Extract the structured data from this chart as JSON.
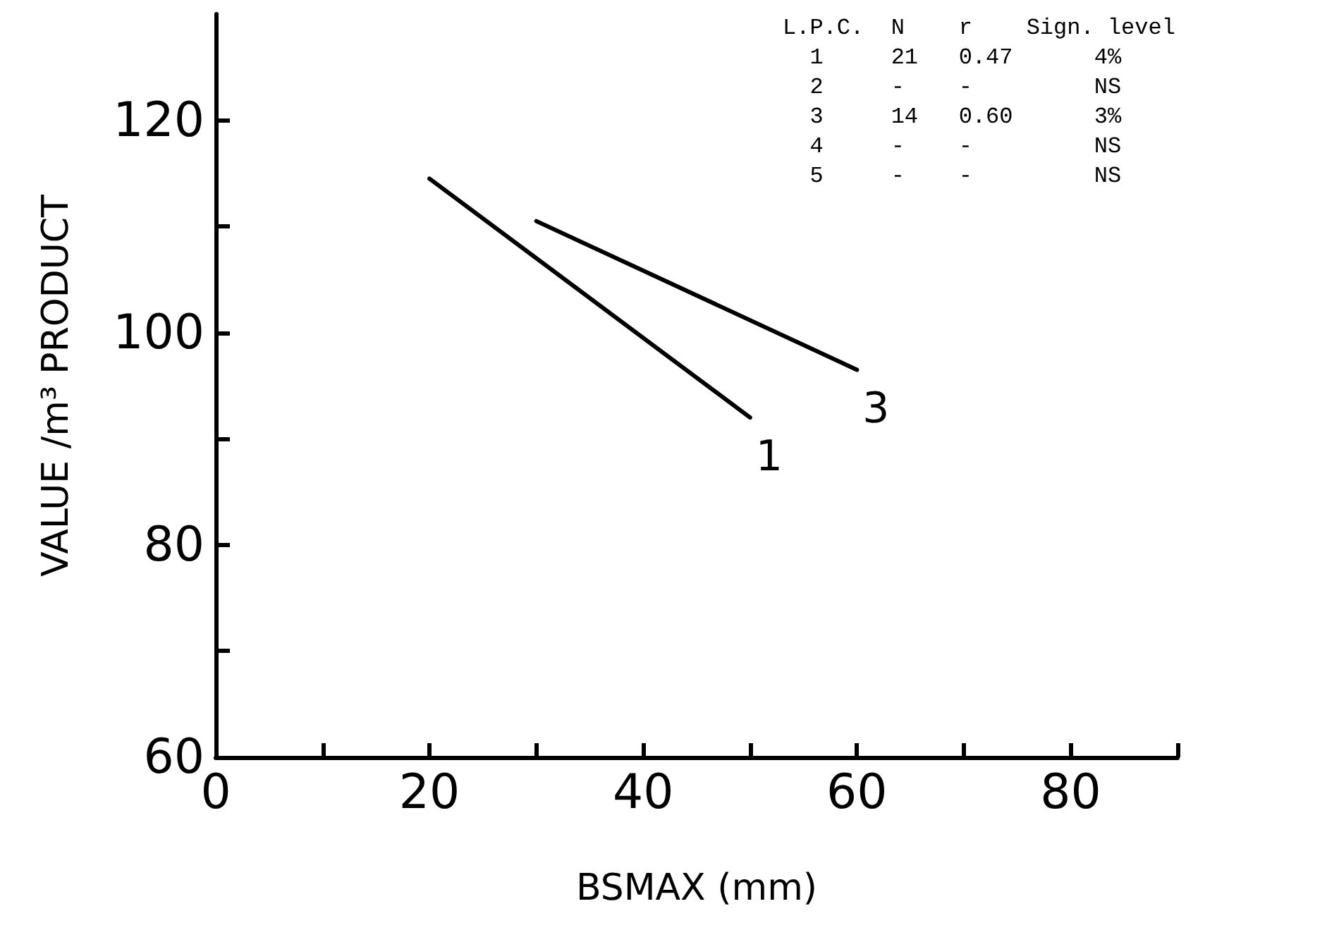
{
  "chart_data": {
    "type": "line",
    "xlabel": "BSMAX (mm)",
    "ylabel": "VALUE /m³ PRODUCT",
    "xlim": [
      0,
      90
    ],
    "ylim": [
      60,
      130
    ],
    "xticks": [
      0,
      {
        "value": 10,
        "label": null
      },
      20,
      {
        "value": 30,
        "label": null
      },
      40,
      {
        "value": 50,
        "label": null
      },
      60,
      {
        "value": 70,
        "label": null
      },
      80,
      {
        "value": 90,
        "label": null
      }
    ],
    "yticks": [
      60,
      {
        "value": 70,
        "label": null
      },
      80,
      {
        "value": 90,
        "label": null
      },
      100,
      {
        "value": 110,
        "label": null
      },
      120
    ],
    "series": [
      {
        "name": "1",
        "color": "#000000",
        "x": [
          20,
          50
        ],
        "values": [
          114.5,
          92
        ]
      },
      {
        "name": "3",
        "color": "#000000",
        "x": [
          30,
          60
        ],
        "values": [
          110.5,
          96.5
        ]
      }
    ],
    "annotations": [
      "L.P.C.  N    r    Sign. level",
      "  1     21   0.47      4%",
      "  2     -    -         NS",
      "  3     14   0.60      3%",
      "  4     -    -         NS",
      "  5     -    -         NS"
    ],
    "grid": false,
    "legend": false,
    "marker": "none",
    "line_style": "solid"
  }
}
